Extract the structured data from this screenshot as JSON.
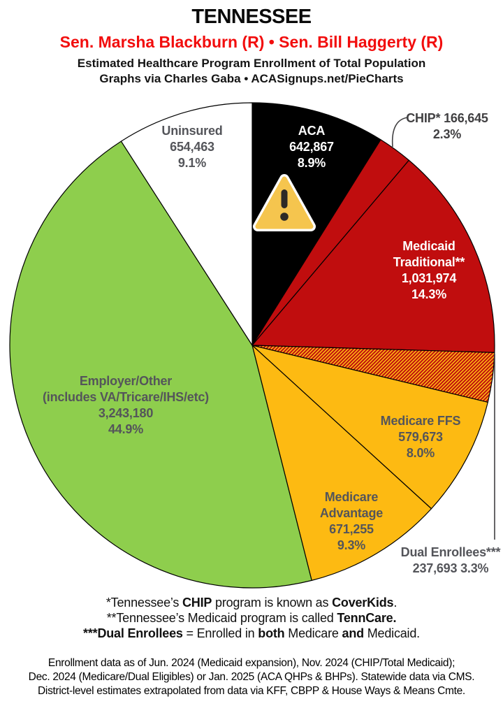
{
  "header": {
    "state": "TENNESSEE",
    "senators": "Sen. Marsha Blackburn (R) • Sen. Bill Haggerty (R)",
    "senators_color": "#f20d0d",
    "subtitle1": "Estimated Healthcare Program Enrollment of Total Population",
    "subtitle2": "Graphs via Charles Gaba  •  ACASignups.net/PieCharts"
  },
  "icons": {
    "aca_slice_icon": "warning-triangle-icon",
    "warning_fill": "#f5c54e",
    "warning_border": "#ffffff",
    "warning_glyph_color": "#2d2a26"
  },
  "chart_data": {
    "type": "pie",
    "title": "Estimated Healthcare Program Enrollment of Total Population",
    "start_angle_deg": 0,
    "direction": "clockwise",
    "legend_position": "in-slice labels with callouts for small slices",
    "slices": [
      {
        "id": "aca",
        "name": "ACA",
        "label_lines": [
          "ACA"
        ],
        "value": "642,867",
        "pct": 8.9,
        "pct_label": "8.9%",
        "fill": "#000000",
        "label_style": "white-on-slice"
      },
      {
        "id": "chip",
        "name": "CHIP*",
        "label_lines": [
          "CHIP*"
        ],
        "value": "166,645",
        "pct": 2.3,
        "pct_label": "2.3%",
        "fill": "#c00d0e",
        "label_style": "dark-callout"
      },
      {
        "id": "medicaid-traditional",
        "name": "Medicaid Traditional**",
        "label_lines": [
          "Medicaid",
          "Traditional**"
        ],
        "value": "1,031,974",
        "pct": 14.3,
        "pct_label": "14.3%",
        "fill": "#c00d0e",
        "label_style": "white-on-slice"
      },
      {
        "id": "dual-enrollees",
        "name": "Dual Enrollees***",
        "label_lines": [
          "Dual Enrollees***"
        ],
        "value": "237,693",
        "pct": 3.3,
        "pct_label": "3.3%",
        "fill": "url(#dual-hatch)",
        "pattern_bg": "#fdba12",
        "pattern_stripe": "#c00d0e",
        "label_style": "gray-callout"
      },
      {
        "id": "medicare-ffs",
        "name": "Medicare FFS",
        "label_lines": [
          "Medicare FFS"
        ],
        "value": "579,673",
        "pct": 8.0,
        "pct_label": "8.0%",
        "fill": "#fdba12",
        "label_style": "gray-on-slice"
      },
      {
        "id": "medicare-advantage",
        "name": "Medicare Advantage",
        "label_lines": [
          "Medicare",
          "Advantage"
        ],
        "value": "671,255",
        "pct": 9.3,
        "pct_label": "9.3%",
        "fill": "#fdba12",
        "label_style": "gray-on-slice"
      },
      {
        "id": "employer-other",
        "name": "Employer/Other (includes VA/Tricare/IHS/etc)",
        "label_lines": [
          "Employer/Other",
          "(includes VA/Tricare/IHS/etc)"
        ],
        "value": "3,243,180",
        "pct": 44.9,
        "pct_label": "44.9%",
        "fill": "#8ece4d",
        "label_style": "gray-on-slice"
      },
      {
        "id": "uninsured",
        "name": "Uninsured",
        "label_lines": [
          "Uninsured"
        ],
        "value": "654,463",
        "pct": 9.1,
        "pct_label": "9.1%",
        "fill": "#ffffff",
        "label_style": "gray-on-slice"
      }
    ],
    "slice_outline_color": "#000000"
  },
  "footnotes": {
    "lines": [
      [
        {
          "t": "*Tennessee’s ",
          "b": false
        },
        {
          "t": "CHIP",
          "b": true
        },
        {
          "t": " program is known as ",
          "b": false
        },
        {
          "t": "CoverKids",
          "b": true
        },
        {
          "t": ".",
          "b": false
        }
      ],
      [
        {
          "t": "**Tennessee’s Medicaid program is called ",
          "b": false
        },
        {
          "t": "TennCare.",
          "b": true
        }
      ],
      [
        {
          "t": "***Dual Enrollees",
          "b": true
        },
        {
          "t": " = Enrolled in ",
          "b": false
        },
        {
          "t": "both",
          "b": true
        },
        {
          "t": " Medicare ",
          "b": false
        },
        {
          "t": "and",
          "b": true
        },
        {
          "t": " Medicaid.",
          "b": false
        }
      ]
    ]
  },
  "source_note": {
    "line1": "Enrollment data as of Jun. 2024 (Medicaid expansion), Nov. 2024 (CHIP/Total Medicaid);",
    "line2": "Dec. 2024 (Medicare/Dual Eligibles) or Jan. 2025 (ACA QHPs & BHPs). Statewide data via CMS.",
    "line3": "District-level estimates extrapolated from data via KFF, CBPP & House Ways & Means Cmte."
  }
}
